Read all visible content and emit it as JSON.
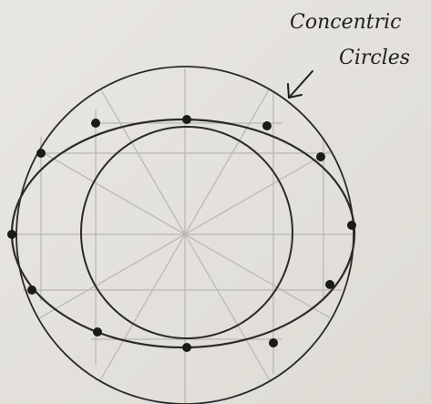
{
  "annotation": {
    "lines": [
      "Concentric",
      "Circles"
    ]
  }
}
